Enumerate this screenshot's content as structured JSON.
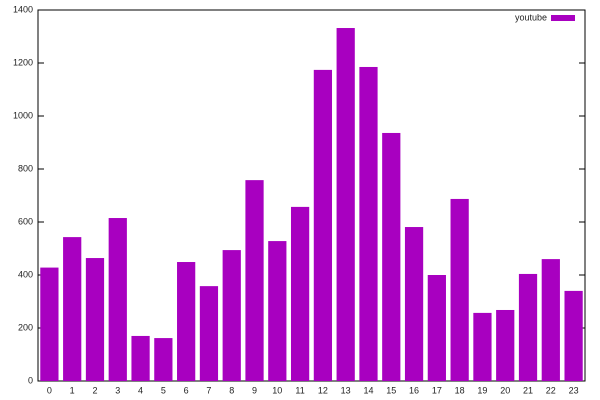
{
  "chart_data": {
    "type": "bar",
    "categories": [
      "0",
      "1",
      "2",
      "3",
      "4",
      "5",
      "6",
      "7",
      "8",
      "9",
      "10",
      "11",
      "12",
      "13",
      "14",
      "15",
      "16",
      "17",
      "18",
      "19",
      "20",
      "21",
      "22",
      "23"
    ],
    "series": [
      {
        "name": "youtube",
        "color": "#a800c0",
        "values": [
          428,
          543,
          464,
          615,
          170,
          162,
          449,
          358,
          494,
          758,
          528,
          657,
          1174,
          1332,
          1185,
          936,
          581,
          400,
          687,
          257,
          268,
          404,
          460,
          340
        ]
      }
    ],
    "ylim": [
      0,
      1400
    ],
    "yticks": [
      0,
      200,
      400,
      600,
      800,
      1000,
      1200,
      1400
    ],
    "grid": false,
    "legend": "top-right"
  }
}
